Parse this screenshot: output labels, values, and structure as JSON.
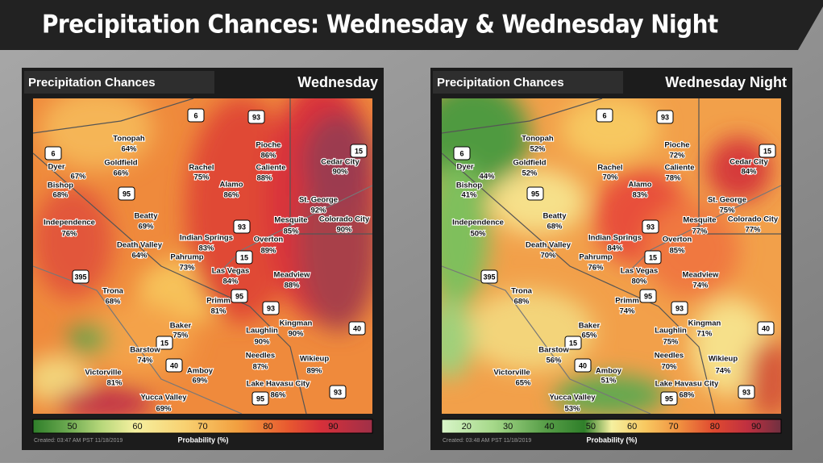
{
  "header": {
    "title": "Precipitation Chances: Wednesday & Wednesday Night"
  },
  "panels": [
    {
      "title": "Precipitation Chances",
      "period": "Wednesday",
      "cities": [
        {
          "name": "Tonopah",
          "value": "64%"
        },
        {
          "name": "Goldfield",
          "value": "66%"
        },
        {
          "name": "Dyer",
          "value": "67%"
        },
        {
          "name": "Bishop",
          "value": "68%"
        },
        {
          "name": "Rachel",
          "value": "75%"
        },
        {
          "name": "Pioche",
          "value": "86%"
        },
        {
          "name": "Caliente",
          "value": "88%"
        },
        {
          "name": "Cedar City",
          "value": "90%"
        },
        {
          "name": "Alamo",
          "value": "86%"
        },
        {
          "name": "St. George",
          "value": "92%"
        },
        {
          "name": "Mesquite",
          "value": "85%"
        },
        {
          "name": "Colorado City",
          "value": "90%"
        },
        {
          "name": "Independence",
          "value": "76%"
        },
        {
          "name": "Beatty",
          "value": "69%"
        },
        {
          "name": "Indian Springs",
          "value": "83%"
        },
        {
          "name": "Overton",
          "value": "89%"
        },
        {
          "name": "Death Valley",
          "value": "64%"
        },
        {
          "name": "Pahrump",
          "value": "73%"
        },
        {
          "name": "Las Vegas",
          "value": "84%"
        },
        {
          "name": "Meadview",
          "value": "88%"
        },
        {
          "name": "Trona",
          "value": "68%"
        },
        {
          "name": "Primm",
          "value": "81%"
        },
        {
          "name": "Kingman",
          "value": "90%"
        },
        {
          "name": "Baker",
          "value": "75%"
        },
        {
          "name": "Laughlin",
          "value": "90%"
        },
        {
          "name": "Barstow",
          "value": "74%"
        },
        {
          "name": "Needles",
          "value": "87%"
        },
        {
          "name": "Wikieup",
          "value": "89%"
        },
        {
          "name": "Amboy",
          "value": "69%"
        },
        {
          "name": "Victorville",
          "value": "81%"
        },
        {
          "name": "Lake Havasu City",
          "value": "86%"
        },
        {
          "name": "Yucca Valley",
          "value": "69%"
        }
      ],
      "shields": [
        "6",
        "93",
        "15",
        "6",
        "95",
        "93",
        "15",
        "395",
        "95",
        "93",
        "40",
        "15",
        "40",
        "95",
        "93"
      ],
      "legend": {
        "ticks": [
          "50",
          "60",
          "70",
          "80",
          "90"
        ],
        "label": "Probability (%)"
      },
      "created": "Created: 03:47 AM PST 11/18/2019"
    },
    {
      "title": "Precipitation Chances",
      "period": "Wednesday Night",
      "cities": [
        {
          "name": "Tonopah",
          "value": "52%"
        },
        {
          "name": "Goldfield",
          "value": "52%"
        },
        {
          "name": "Dyer",
          "value": "44%"
        },
        {
          "name": "Bishop",
          "value": "41%"
        },
        {
          "name": "Rachel",
          "value": "70%"
        },
        {
          "name": "Pioche",
          "value": "72%"
        },
        {
          "name": "Caliente",
          "value": "78%"
        },
        {
          "name": "Cedar City",
          "value": "84%"
        },
        {
          "name": "Alamo",
          "value": "83%"
        },
        {
          "name": "St. George",
          "value": "75%"
        },
        {
          "name": "Mesquite",
          "value": "77%"
        },
        {
          "name": "Colorado City",
          "value": "77%"
        },
        {
          "name": "Independence",
          "value": "50%"
        },
        {
          "name": "Beatty",
          "value": "68%"
        },
        {
          "name": "Indian Springs",
          "value": "84%"
        },
        {
          "name": "Overton",
          "value": "85%"
        },
        {
          "name": "Death Valley",
          "value": "70%"
        },
        {
          "name": "Pahrump",
          "value": "76%"
        },
        {
          "name": "Las Vegas",
          "value": "80%"
        },
        {
          "name": "Meadview",
          "value": "74%"
        },
        {
          "name": "Trona",
          "value": "68%"
        },
        {
          "name": "Primm",
          "value": "74%"
        },
        {
          "name": "Kingman",
          "value": "71%"
        },
        {
          "name": "Baker",
          "value": "65%"
        },
        {
          "name": "Laughlin",
          "value": "75%"
        },
        {
          "name": "Barstow",
          "value": "56%"
        },
        {
          "name": "Needles",
          "value": "70%"
        },
        {
          "name": "Wikieup",
          "value": "74%"
        },
        {
          "name": "Amboy",
          "value": "51%"
        },
        {
          "name": "Victorville",
          "value": "65%"
        },
        {
          "name": "Lake Havasu City",
          "value": "68%"
        },
        {
          "name": "Yucca Valley",
          "value": "53%"
        }
      ],
      "shields": [
        "6",
        "93",
        "15",
        "6",
        "95",
        "93",
        "15",
        "395",
        "95",
        "93",
        "40",
        "15",
        "40",
        "95",
        "93"
      ],
      "legend": {
        "ticks": [
          "20",
          "30",
          "40",
          "50",
          "60",
          "70",
          "80",
          "90"
        ],
        "label": "Probability (%)"
      },
      "created": "Created: 03:48 AM PST 11/18/2019"
    }
  ]
}
